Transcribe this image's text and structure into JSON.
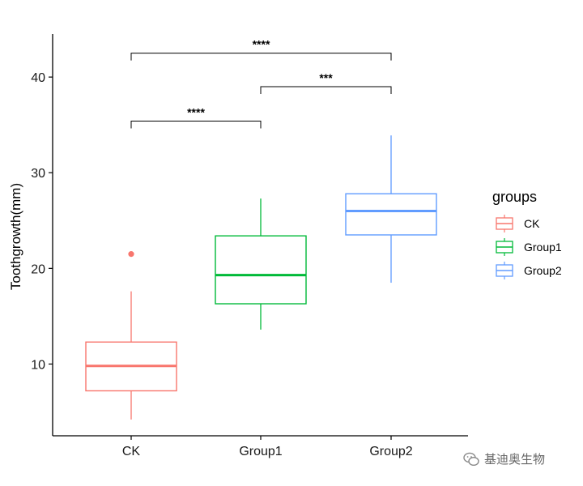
{
  "chart_data": {
    "type": "box",
    "ylabel": "Toothgrowth(mm)",
    "xlabel": "",
    "ylim": [
      2.5,
      44.5
    ],
    "yticks": [
      10,
      20,
      30,
      40
    ],
    "categories": [
      "CK",
      "Group1",
      "Group2"
    ],
    "colors": [
      "#F8766D",
      "#00BA38",
      "#619CFF"
    ],
    "boxes": [
      {
        "name": "CK",
        "whisker_low": 4.2,
        "q1": 7.2,
        "median": 9.8,
        "q3": 12.3,
        "whisker_high": 17.6,
        "outliers": [
          21.5
        ]
      },
      {
        "name": "Group1",
        "whisker_low": 13.6,
        "q1": 16.3,
        "median": 19.3,
        "q3": 23.4,
        "whisker_high": 27.3,
        "outliers": []
      },
      {
        "name": "Group2",
        "whisker_low": 18.5,
        "q1": 23.5,
        "median": 26.0,
        "q3": 27.8,
        "whisker_high": 33.9,
        "outliers": []
      }
    ],
    "comparisons": [
      {
        "from": "CK",
        "to": "Group1",
        "y": 35.4,
        "label": "****"
      },
      {
        "from": "Group1",
        "to": "Group2",
        "y": 39.0,
        "label": "***"
      },
      {
        "from": "CK",
        "to": "Group2",
        "y": 42.5,
        "label": "****"
      }
    ],
    "legend": {
      "title": "groups",
      "position": "right",
      "entries": [
        "CK",
        "Group1",
        "Group2"
      ]
    },
    "grid": false
  },
  "watermark": {
    "text": "基迪奥生物",
    "icon": "wechat-icon"
  }
}
